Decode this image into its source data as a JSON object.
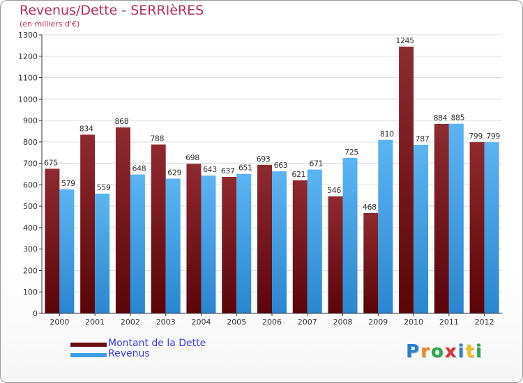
{
  "header": {
    "title": "Revenus/Dette - SERRIèRES",
    "subtitle": "(en milliers d'€)"
  },
  "colors": {
    "dette": "#7a1a20",
    "revenus": "#3f9fe6",
    "axis": "#333333",
    "grid": "#dddddd"
  },
  "legend": {
    "dette_label": "Montant de la Dette",
    "revenus_label": "Revenus"
  },
  "logo": {
    "letters": [
      "P",
      "r",
      "o",
      "x",
      "i",
      "t",
      "i"
    ],
    "colors": [
      "#2a7fd4",
      "#f08a1c",
      "#2aa84a",
      "#e03030",
      "#2a7fd4",
      "#f0c01c",
      "#2aa84a"
    ]
  },
  "chart_data": {
    "type": "bar",
    "title": "Revenus/Dette - SERRIèRES",
    "subtitle": "(en milliers d'€)",
    "categories": [
      "2000",
      "2001",
      "2002",
      "2003",
      "2004",
      "2005",
      "2006",
      "2007",
      "2008",
      "2009",
      "2010",
      "2011",
      "2012"
    ],
    "series": [
      {
        "name": "Montant de la Dette",
        "values": [
          675,
          834,
          868,
          788,
          698,
          637,
          693,
          621,
          546,
          468,
          1245,
          884,
          799
        ]
      },
      {
        "name": "Revenus",
        "values": [
          579,
          559,
          648,
          629,
          643,
          651,
          663,
          671,
          725,
          810,
          787,
          885,
          799
        ]
      }
    ],
    "yticks": [
      "0",
      "100",
      "200",
      "300",
      "400",
      "500",
      "600",
      "700",
      "800",
      "900",
      "1000",
      "1100",
      "1200",
      "1300"
    ],
    "ylim": [
      0,
      1300
    ],
    "grid": true,
    "legend_position": "bottom-left"
  }
}
